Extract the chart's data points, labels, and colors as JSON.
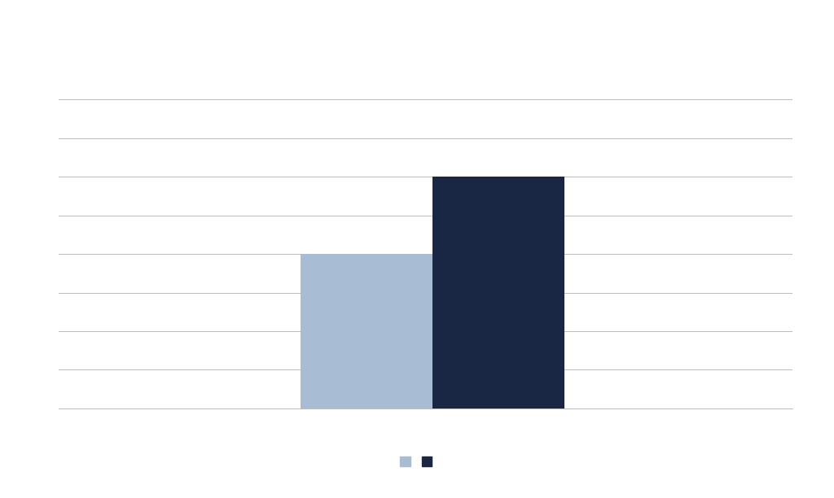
{
  "values": [
    50,
    75
  ],
  "bar_colors": [
    "#a8bdd4",
    "#1a2744"
  ],
  "bar_width": 0.18,
  "ylim": [
    0,
    100
  ],
  "yticks": [
    0,
    12.5,
    25,
    37.5,
    50,
    62.5,
    75,
    87.5,
    100
  ],
  "grid_color": "#bbbbbb",
  "background_color": "#ffffff",
  "legend_colors": [
    "#a8bdd4",
    "#1a2744"
  ],
  "bar_positions": [
    0.42,
    0.6
  ]
}
